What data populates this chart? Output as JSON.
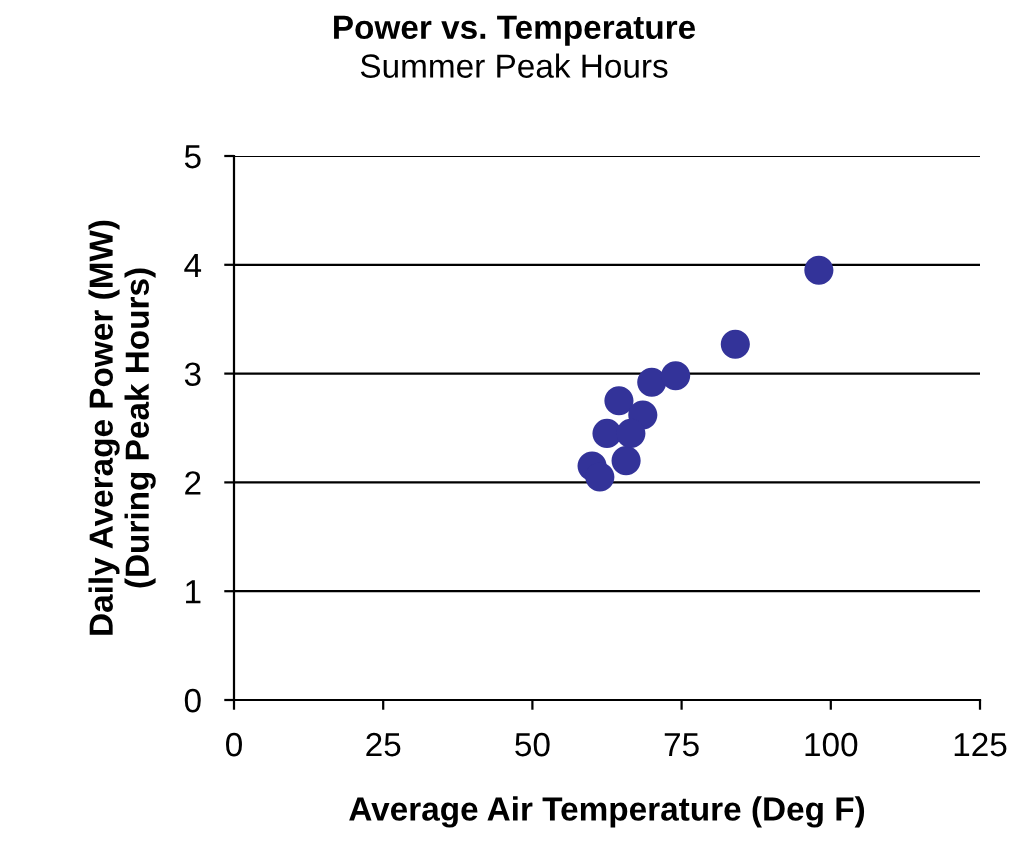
{
  "chart_data": {
    "type": "scatter",
    "title": "Power vs. Temperature",
    "subtitle": "Summer Peak Hours",
    "xlabel": "Average Air Temperature (Deg F)",
    "ylabel": "Daily Average Power (MW)\n(During Peak Hours)",
    "series": [
      {
        "color": "#333399",
        "x": [
          60,
          61.3,
          65.7,
          62.5,
          64.5,
          68.5,
          70,
          74,
          84,
          98,
          66.5
        ],
        "values": [
          2.15,
          2.05,
          2.2,
          2.45,
          2.75,
          2.62,
          2.92,
          2.98,
          3.27,
          3.95,
          2.45
        ]
      }
    ],
    "xlim": [
      0,
      125
    ],
    "xticks": [
      0,
      25,
      50,
      75,
      100,
      125
    ],
    "ylim": [
      0,
      5
    ],
    "yticks": [
      0,
      1,
      2,
      3,
      4,
      5
    ],
    "grid": "y",
    "marker": "circle"
  }
}
